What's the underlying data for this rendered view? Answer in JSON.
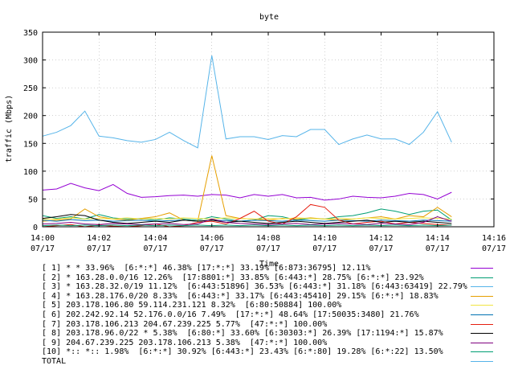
{
  "chart_data": {
    "type": "line",
    "title": "byte",
    "xlabel": "Time",
    "ylabel": "traffic (Mbps)",
    "ylim": [
      0,
      350
    ],
    "yticks": [
      "0",
      "50",
      "100",
      "150",
      "200",
      "250",
      "300",
      "350"
    ],
    "xticks": [
      {
        "time": "14:00",
        "date": "07/17"
      },
      {
        "time": "14:02",
        "date": "07/17"
      },
      {
        "time": "14:04",
        "date": "07/17"
      },
      {
        "time": "14:06",
        "date": "07/17"
      },
      {
        "time": "14:08",
        "date": "07/17"
      },
      {
        "time": "14:10",
        "date": "07/17"
      },
      {
        "time": "14:12",
        "date": "07/17"
      },
      {
        "time": "14:14",
        "date": "07/17"
      },
      {
        "time": "14:16",
        "date": "07/17"
      }
    ],
    "xlim_minutes": [
      0,
      16
    ],
    "x_minutes": [
      0,
      0.5,
      1,
      1.5,
      2,
      2.5,
      3,
      3.5,
      4,
      4.5,
      5,
      5.5,
      6,
      6.5,
      7,
      7.5,
      8,
      8.5,
      9,
      9.5,
      10,
      10.5,
      11,
      11.5,
      12,
      12.5,
      13,
      13.5,
      14,
      14.5
    ],
    "grid": true,
    "legend_position": "bottom",
    "series": [
      {
        "name": "[ 1] * * 33.96%  [6:*:*] 46.38% [17:*:*] 33.19% [6:873:36795] 12.11%",
        "color": "#9400d3",
        "values": [
          66,
          68,
          78,
          70,
          65,
          76,
          60,
          53,
          54,
          56,
          57,
          55,
          58,
          57,
          52,
          58,
          55,
          58,
          52,
          53,
          48,
          50,
          55,
          53,
          52,
          55,
          60,
          58,
          50,
          62
        ]
      },
      {
        "name": "[ 2] * 163.28.0.0/16 12.26%  [17:8801:*] 33.85% [6:443:*] 28.75% [6:*:*] 23.92%",
        "color": "#009e73",
        "values": [
          20,
          15,
          18,
          14,
          22,
          16,
          14,
          15,
          12,
          16,
          14,
          12,
          18,
          14,
          10,
          12,
          20,
          18,
          12,
          15,
          14,
          18,
          20,
          25,
          32,
          28,
          22,
          28,
          30,
          12
        ]
      },
      {
        "name": "[ 3] * 163.28.32.0/19 11.12%  [6:443:51896] 36.53% [6:443:*] 31.18% [6:443:63419] 22.79%",
        "color": "#56b4e9",
        "values": [
          163,
          170,
          182,
          208,
          163,
          160,
          155,
          152,
          157,
          170,
          155,
          142,
          308,
          158,
          162,
          162,
          157,
          164,
          162,
          175,
          175,
          148,
          158,
          165,
          158,
          158,
          148,
          170,
          207,
          152
        ]
      },
      {
        "name": "[ 4] * 163.28.176.0/20 8.33%  [6:443:*] 33.17% [6:443:45410] 29.15% [6:*:*] 18.83%",
        "color": "#e69f00",
        "values": [
          10,
          12,
          14,
          32,
          18,
          14,
          12,
          15,
          18,
          25,
          12,
          10,
          128,
          20,
          15,
          14,
          12,
          15,
          14,
          16,
          14,
          12,
          14,
          16,
          18,
          14,
          20,
          18,
          35,
          18
        ]
      },
      {
        "name": "[ 5] 203.178.106.80 59.114.231.121 8.32%  [6:80:50884] 100.00%",
        "color": "#f0e442",
        "values": [
          14,
          14,
          16,
          14,
          15,
          14,
          16,
          14,
          15,
          14,
          16,
          15,
          14,
          16,
          15,
          14,
          15,
          14,
          16,
          15,
          14,
          15,
          14,
          16,
          15,
          14,
          15,
          16,
          15,
          14
        ]
      },
      {
        "name": "[ 6] 202.242.92.14 52.176.0.0/16 7.49%  [17:*:*] 48.64% [17:50035:3480] 21.76%",
        "color": "#0072b2",
        "values": [
          12,
          10,
          13,
          11,
          12,
          10,
          11,
          12,
          10,
          11,
          12,
          10,
          12,
          11,
          10,
          12,
          11,
          10,
          12,
          11,
          10,
          12,
          11,
          10,
          12,
          11,
          10,
          12,
          11,
          10
        ]
      },
      {
        "name": "[ 7] 203.178.106.213 204.67.239.225 5.77%  [47:*:*] 100.00%",
        "color": "#e51e10",
        "values": [
          0,
          2,
          4,
          0,
          3,
          1,
          0,
          2,
          5,
          0,
          2,
          8,
          10,
          5,
          15,
          28,
          10,
          5,
          18,
          40,
          35,
          12,
          5,
          8,
          10,
          5,
          8,
          6,
          4,
          3
        ]
      },
      {
        "name": "[ 8] 203.178.96.0/22 * 5.38%  [6:80:*] 33.60% [6:30303:*] 26.39% [17:1194:*] 15.87%",
        "color": "#000000",
        "values": [
          15,
          18,
          22,
          20,
          12,
          8,
          6,
          8,
          10,
          8,
          12,
          10,
          12,
          8,
          10,
          8,
          6,
          8,
          10,
          8,
          6,
          8,
          10,
          12,
          8,
          10,
          8,
          10,
          8,
          6
        ]
      },
      {
        "name": "[ 9] 204.67.239.225 203.178.106.213 5.38%  [47:*:*] 100.00%",
        "color": "#7f007f",
        "values": [
          5,
          6,
          8,
          5,
          4,
          6,
          5,
          4,
          5,
          6,
          4,
          5,
          14,
          8,
          6,
          5,
          4,
          5,
          6,
          4,
          5,
          6,
          5,
          4,
          6,
          5,
          4,
          8,
          18,
          10
        ]
      },
      {
        "name": "[10] *:: *:: 1.98%  [6:*:*] 30.92% [6:443:*] 23.43% [6:*:80] 19.28% [6:*:22] 13.50%",
        "color": "#009e73",
        "values": [
          2,
          3,
          2,
          3,
          2,
          3,
          2,
          3,
          2,
          3,
          2,
          3,
          2,
          3,
          2,
          3,
          2,
          3,
          2,
          3,
          2,
          3,
          2,
          3,
          2,
          3,
          2,
          3,
          2,
          3
        ]
      },
      {
        "name": "TOTAL",
        "color": "#56b4e9",
        "values": []
      }
    ]
  }
}
